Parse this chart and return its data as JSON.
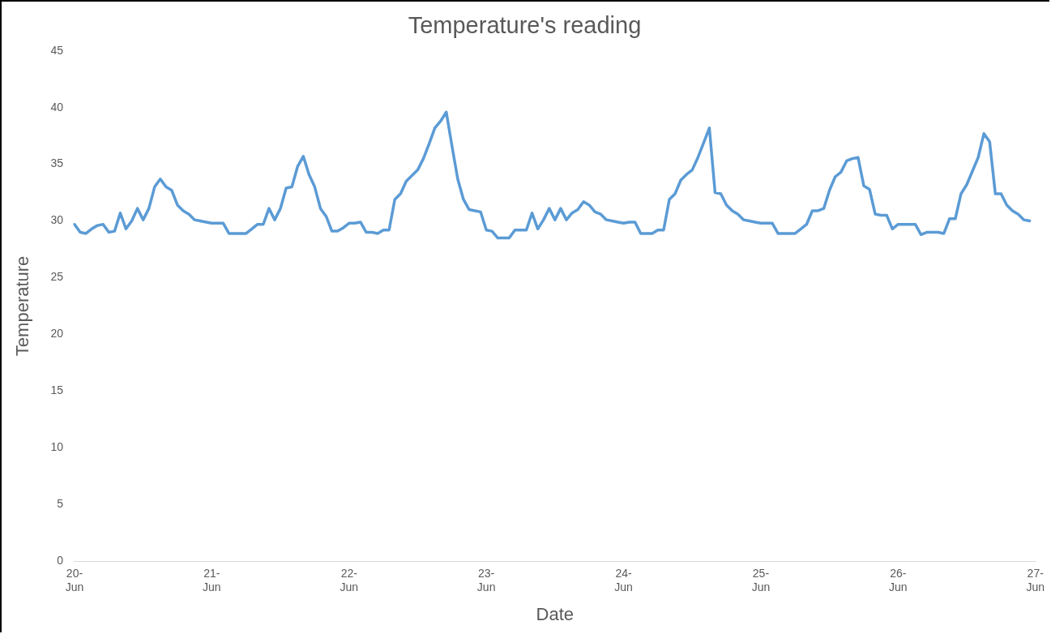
{
  "chart_data": {
    "type": "line",
    "title": "Temperature's reading",
    "xlabel": "Date",
    "ylabel": "Temperature",
    "categories": [
      "20-Jun",
      null,
      null,
      null,
      null,
      null,
      null,
      null,
      null,
      null,
      null,
      null,
      null,
      null,
      null,
      null,
      null,
      null,
      null,
      null,
      null,
      null,
      null,
      null,
      "21-Jun",
      null,
      null,
      null,
      null,
      null,
      null,
      null,
      null,
      null,
      null,
      null,
      null,
      null,
      null,
      null,
      null,
      null,
      null,
      null,
      null,
      null,
      null,
      null,
      "22-Jun",
      null,
      null,
      null,
      null,
      null,
      null,
      null,
      null,
      null,
      null,
      null,
      null,
      null,
      null,
      null,
      null,
      null,
      null,
      null,
      null,
      null,
      null,
      null,
      "23-Jun",
      null,
      null,
      null,
      null,
      null,
      null,
      null,
      null,
      null,
      null,
      null,
      null,
      null,
      null,
      null,
      null,
      null,
      null,
      null,
      null,
      null,
      null,
      null,
      "24-Jun",
      null,
      null,
      null,
      null,
      null,
      null,
      null,
      null,
      null,
      null,
      null,
      null,
      null,
      null,
      null,
      null,
      null,
      null,
      null,
      null,
      null,
      null,
      null,
      "25-Jun",
      null,
      null,
      null,
      null,
      null,
      null,
      null,
      null,
      null,
      null,
      null,
      null,
      null,
      null,
      null,
      null,
      null,
      null,
      null,
      null,
      null,
      null,
      null,
      "26-Jun",
      null,
      null,
      null,
      null,
      null,
      null,
      null,
      null,
      null,
      null,
      null,
      null,
      null,
      null,
      null,
      null,
      null,
      null,
      null,
      null,
      null,
      null,
      null,
      "27-Jun"
    ],
    "series": [
      {
        "color": "#5b9bd5",
        "values": [
          29.7,
          29.0,
          28.9,
          29.3,
          29.6,
          29.7,
          29.0,
          29.1,
          30.7,
          29.3,
          30.0,
          31.1,
          30.1,
          31.1,
          33.0,
          33.7,
          33.0,
          32.7,
          31.4,
          30.9,
          30.6,
          30.1,
          30.0,
          29.9,
          29.8,
          29.8,
          29.8,
          28.9,
          28.9,
          28.9,
          28.9,
          29.3,
          29.7,
          29.7,
          31.1,
          30.1,
          31.1,
          32.9,
          33.0,
          34.8,
          35.7,
          34.1,
          33.0,
          31.1,
          30.4,
          29.1,
          29.1,
          29.4,
          29.8,
          29.8,
          29.9,
          29.0,
          29.0,
          28.9,
          29.2,
          29.2,
          31.9,
          32.4,
          33.5,
          34.0,
          34.5,
          35.5,
          36.8,
          38.2,
          38.8,
          39.6,
          36.6,
          33.7,
          31.9,
          31.0,
          30.9,
          30.8,
          29.2,
          29.1,
          28.5,
          28.5,
          28.5,
          29.2,
          29.2,
          29.2,
          30.7,
          29.3,
          30.1,
          31.1,
          30.1,
          31.1,
          30.1,
          30.7,
          31.0,
          31.7,
          31.4,
          30.8,
          30.6,
          30.1,
          30.0,
          29.9,
          29.8,
          29.9,
          29.9,
          28.9,
          28.9,
          28.9,
          29.2,
          29.2,
          31.9,
          32.4,
          33.6,
          34.1,
          34.5,
          35.6,
          36.9,
          38.2,
          32.5,
          32.4,
          31.4,
          30.9,
          30.6,
          30.1,
          30.0,
          29.9,
          29.8,
          29.8,
          29.8,
          28.9,
          28.9,
          28.9,
          28.9,
          29.3,
          29.7,
          30.9,
          30.9,
          31.1,
          32.7,
          33.9,
          34.3,
          35.3,
          35.5,
          35.6,
          33.1,
          32.8,
          30.6,
          30.5,
          30.5,
          29.3,
          29.7,
          29.7,
          29.7,
          29.7,
          28.8,
          29.0,
          29.0,
          29.0,
          28.9,
          30.2,
          30.2,
          32.4,
          33.2,
          34.4,
          35.6,
          37.7,
          37.0,
          32.4,
          32.4,
          31.4,
          30.9,
          30.6,
          30.1,
          30.0,
          null
        ]
      }
    ],
    "ylim": [
      0,
      45
    ],
    "yticks": [
      0,
      5,
      10,
      15,
      20,
      25,
      30,
      35,
      40,
      45
    ],
    "grid": false,
    "legend": false,
    "marker": "none",
    "line_style": "solid"
  }
}
